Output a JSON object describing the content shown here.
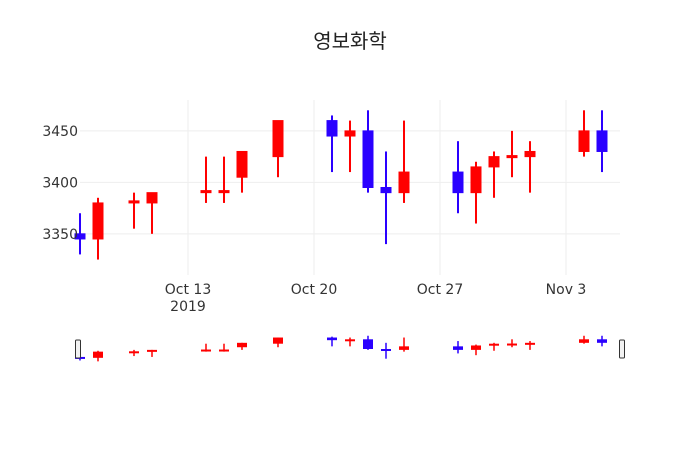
{
  "chart_data": {
    "type": "candlestick",
    "title": "영보화학",
    "xlabel": "",
    "ylabel": "",
    "x_axis": {
      "type": "date",
      "range": [
        "2019-10-07",
        "2019-11-06"
      ],
      "tick_labels": [
        {
          "date": "2019-10-13",
          "label": "Oct 13",
          "sublabel": "2019"
        },
        {
          "date": "2019-10-20",
          "label": "Oct 20",
          "sublabel": ""
        },
        {
          "date": "2019-10-27",
          "label": "Oct 27",
          "sublabel": ""
        },
        {
          "date": "2019-11-03",
          "label": "Nov 3",
          "sublabel": ""
        }
      ]
    },
    "y_axis": {
      "range": [
        3310,
        3480
      ],
      "ticks": [
        3350,
        3400,
        3450
      ]
    },
    "colors": {
      "increasing": "#ff0000",
      "decreasing": "#2a00ff"
    },
    "grid": true,
    "rangeslider": true,
    "candles": [
      {
        "date": "2019-10-07",
        "open": 3350,
        "high": 3370,
        "low": 3330,
        "close": 3345
      },
      {
        "date": "2019-10-08",
        "open": 3345,
        "high": 3385,
        "low": 3325,
        "close": 3380
      },
      {
        "date": "2019-10-10",
        "open": 3380,
        "high": 3390,
        "low": 3355,
        "close": 3382
      },
      {
        "date": "2019-10-11",
        "open": 3380,
        "high": 3390,
        "low": 3350,
        "close": 3390
      },
      {
        "date": "2019-10-14",
        "open": 3390,
        "high": 3425,
        "low": 3380,
        "close": 3392
      },
      {
        "date": "2019-10-15",
        "open": 3390,
        "high": 3425,
        "low": 3380,
        "close": 3392
      },
      {
        "date": "2019-10-16",
        "open": 3405,
        "high": 3430,
        "low": 3390,
        "close": 3430
      },
      {
        "date": "2019-10-18",
        "open": 3425,
        "high": 3460,
        "low": 3405,
        "close": 3460
      },
      {
        "date": "2019-10-21",
        "open": 3460,
        "high": 3465,
        "low": 3410,
        "close": 3445
      },
      {
        "date": "2019-10-22",
        "open": 3445,
        "high": 3460,
        "low": 3410,
        "close": 3450
      },
      {
        "date": "2019-10-23",
        "open": 3450,
        "high": 3470,
        "low": 3390,
        "close": 3395
      },
      {
        "date": "2019-10-24",
        "open": 3395,
        "high": 3430,
        "low": 3340,
        "close": 3390
      },
      {
        "date": "2019-10-25",
        "open": 3390,
        "high": 3460,
        "low": 3380,
        "close": 3410
      },
      {
        "date": "2019-10-28",
        "open": 3410,
        "high": 3440,
        "low": 3370,
        "close": 3390
      },
      {
        "date": "2019-10-29",
        "open": 3390,
        "high": 3420,
        "low": 3360,
        "close": 3415
      },
      {
        "date": "2019-10-30",
        "open": 3415,
        "high": 3430,
        "low": 3385,
        "close": 3425
      },
      {
        "date": "2019-10-31",
        "open": 3424,
        "high": 3450,
        "low": 3405,
        "close": 3426
      },
      {
        "date": "2019-11-01",
        "open": 3425,
        "high": 3440,
        "low": 3390,
        "close": 3430
      },
      {
        "date": "2019-11-04",
        "open": 3430,
        "high": 3470,
        "low": 3425,
        "close": 3450
      },
      {
        "date": "2019-11-05",
        "open": 3450,
        "high": 3470,
        "low": 3410,
        "close": 3430
      }
    ]
  }
}
